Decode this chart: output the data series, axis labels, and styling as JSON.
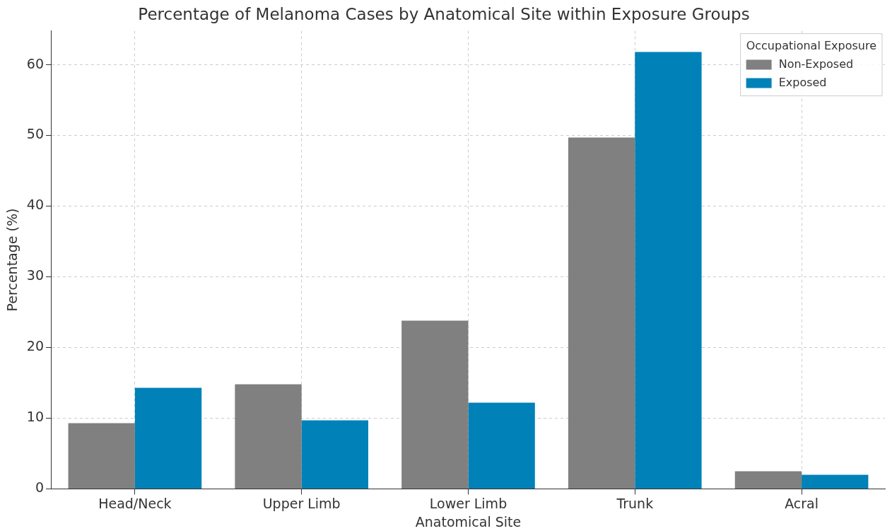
{
  "chart_data": {
    "type": "bar",
    "title": "Percentage of Melanoma Cases by Anatomical Site within Exposure Groups",
    "xlabel": "Anatomical Site",
    "ylabel": "Percentage (%)",
    "legend_title": "Occupational Exposure",
    "categories": [
      "Head/Neck",
      "Upper Limb",
      "Lower Limb",
      "Trunk",
      "Acral"
    ],
    "series": [
      {
        "name": "Non-Exposed",
        "color": "#808080",
        "values": [
          9.3,
          14.8,
          23.8,
          49.7,
          2.5
        ]
      },
      {
        "name": "Exposed",
        "color": "#0081b8",
        "values": [
          14.3,
          9.7,
          12.2,
          61.8,
          2.0
        ]
      }
    ],
    "ylim": [
      0,
      64.8
    ],
    "yticks": [
      0,
      10,
      20,
      30,
      40,
      50,
      60
    ],
    "grid": true,
    "legend": "top right"
  }
}
